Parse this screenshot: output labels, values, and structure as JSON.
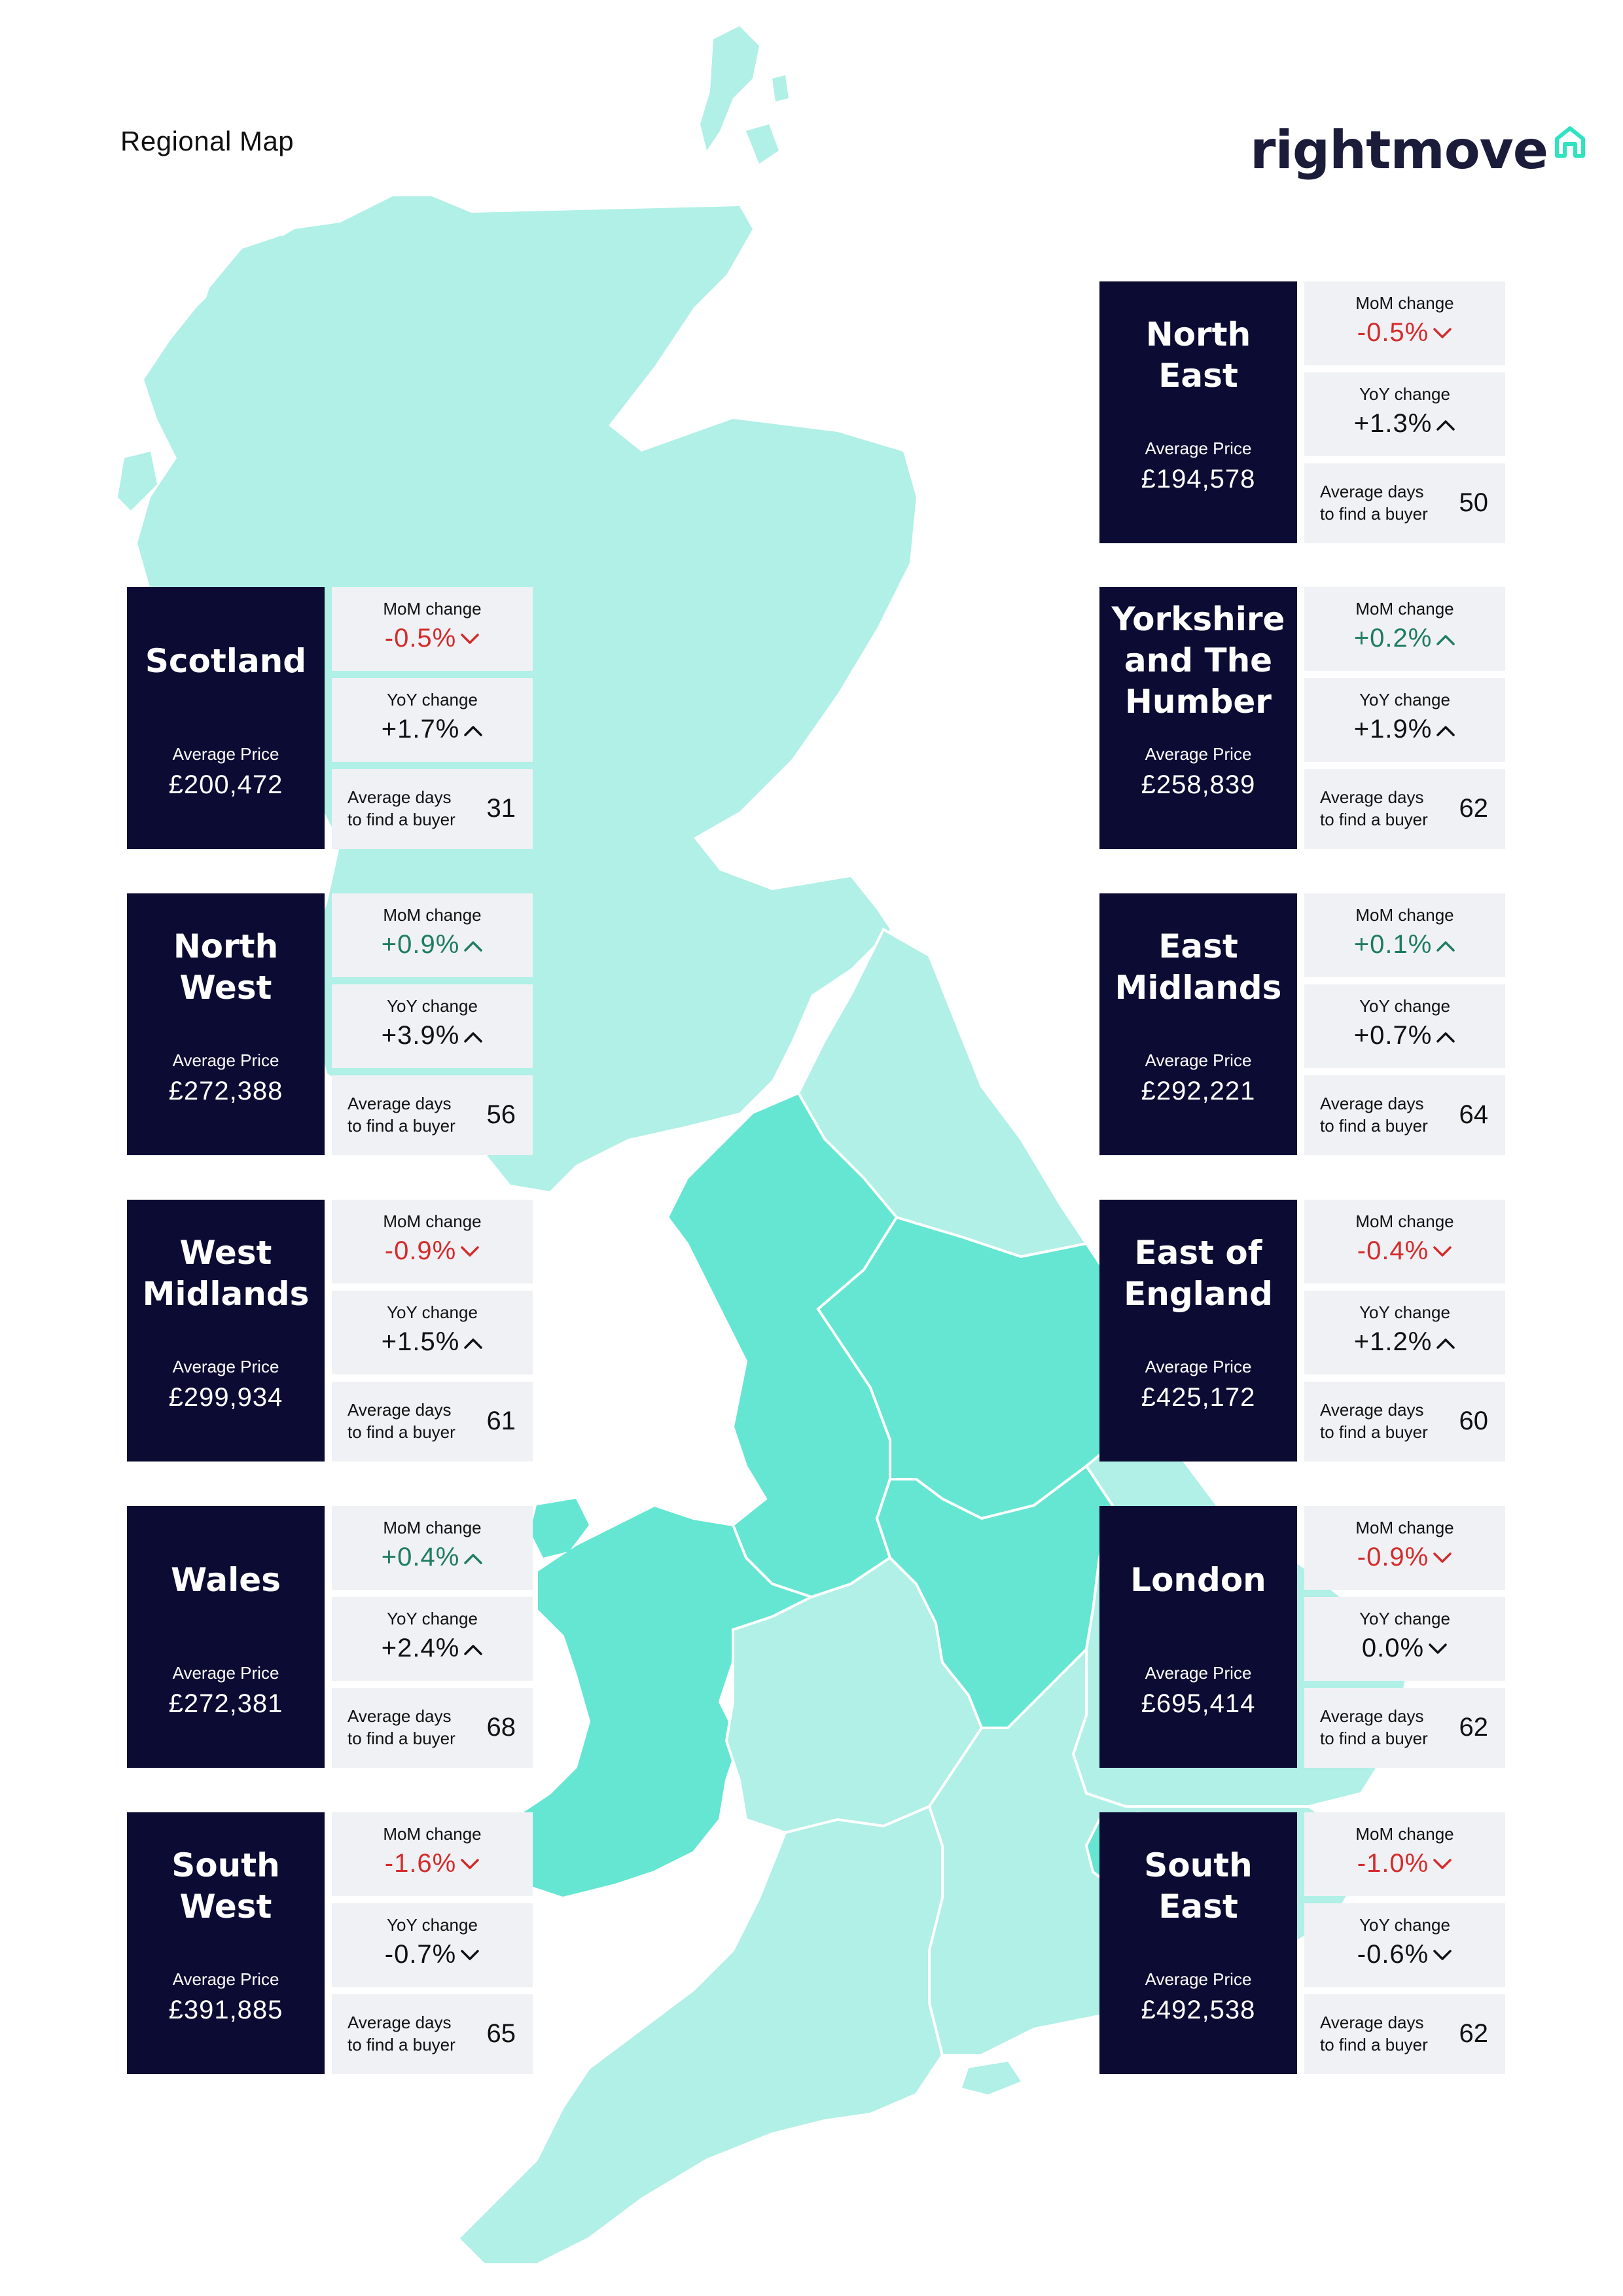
{
  "page": {
    "title": "Regional Map"
  },
  "logo": {
    "text": "rightmove"
  },
  "colors": {
    "card_dark": "#0b0b33",
    "stat_bg": "#f0f1f4",
    "negative": "#d42b2b",
    "positive_green": "#1e7d5e",
    "map_light": "#b0f0e6",
    "map_mid": "#64e6d2"
  },
  "labels": {
    "avg_price": "Average Price",
    "mom": "MoM change",
    "yoy": "YoY change",
    "days_line1": "Average days",
    "days_line2": "to find a buyer"
  },
  "regions": {
    "north_east": {
      "name_lines": [
        "North",
        "East"
      ],
      "avg_price": "£194,578",
      "mom": "-0.5%",
      "mom_dir": "down",
      "yoy": "+1.3%",
      "yoy_dir": "up",
      "days": "50"
    },
    "scotland": {
      "name_lines": [
        "Scotland"
      ],
      "avg_price": "£200,472",
      "mom": "-0.5%",
      "mom_dir": "down",
      "yoy": "+1.7%",
      "yoy_dir": "up",
      "days": "31"
    },
    "yorkshire": {
      "name_lines": [
        "Yorkshire",
        "and The",
        "Humber"
      ],
      "avg_price": "£258,839",
      "mom": "+0.2%",
      "mom_dir": "up",
      "yoy": "+1.9%",
      "yoy_dir": "up",
      "days": "62"
    },
    "north_west": {
      "name_lines": [
        "North",
        "West"
      ],
      "avg_price": "£272,388",
      "mom": "+0.9%",
      "mom_dir": "up",
      "yoy": "+3.9%",
      "yoy_dir": "up",
      "days": "56"
    },
    "east_midlands": {
      "name_lines": [
        "East",
        "Midlands"
      ],
      "avg_price": "£292,221",
      "mom": "+0.1%",
      "mom_dir": "up",
      "yoy": "+0.7%",
      "yoy_dir": "up",
      "days": "64"
    },
    "west_midlands": {
      "name_lines": [
        "West",
        "Midlands"
      ],
      "avg_price": "£299,934",
      "mom": "-0.9%",
      "mom_dir": "down",
      "yoy": "+1.5%",
      "yoy_dir": "up",
      "days": "61"
    },
    "east_of_england": {
      "name_lines": [
        "East of",
        "England"
      ],
      "avg_price": "£425,172",
      "mom": "-0.4%",
      "mom_dir": "down",
      "yoy": "+1.2%",
      "yoy_dir": "up",
      "days": "60"
    },
    "wales": {
      "name_lines": [
        "Wales"
      ],
      "avg_price": "£272,381",
      "mom": "+0.4%",
      "mom_dir": "up",
      "yoy": "+2.4%",
      "yoy_dir": "up",
      "days": "68"
    },
    "london": {
      "name_lines": [
        "London"
      ],
      "avg_price": "£695,414",
      "mom": "-0.9%",
      "mom_dir": "down",
      "yoy": "0.0%",
      "yoy_dir": "down",
      "days": "62"
    },
    "south_west": {
      "name_lines": [
        "South",
        "West"
      ],
      "avg_price": "£391,885",
      "mom": "-1.6%",
      "mom_dir": "down",
      "yoy": "-0.7%",
      "yoy_dir": "down",
      "days": "65"
    },
    "south_east": {
      "name_lines": [
        "South",
        "East"
      ],
      "avg_price": "£492,538",
      "mom": "-1.0%",
      "mom_dir": "down",
      "yoy": "-0.6%",
      "yoy_dir": "down",
      "days": "62"
    }
  }
}
